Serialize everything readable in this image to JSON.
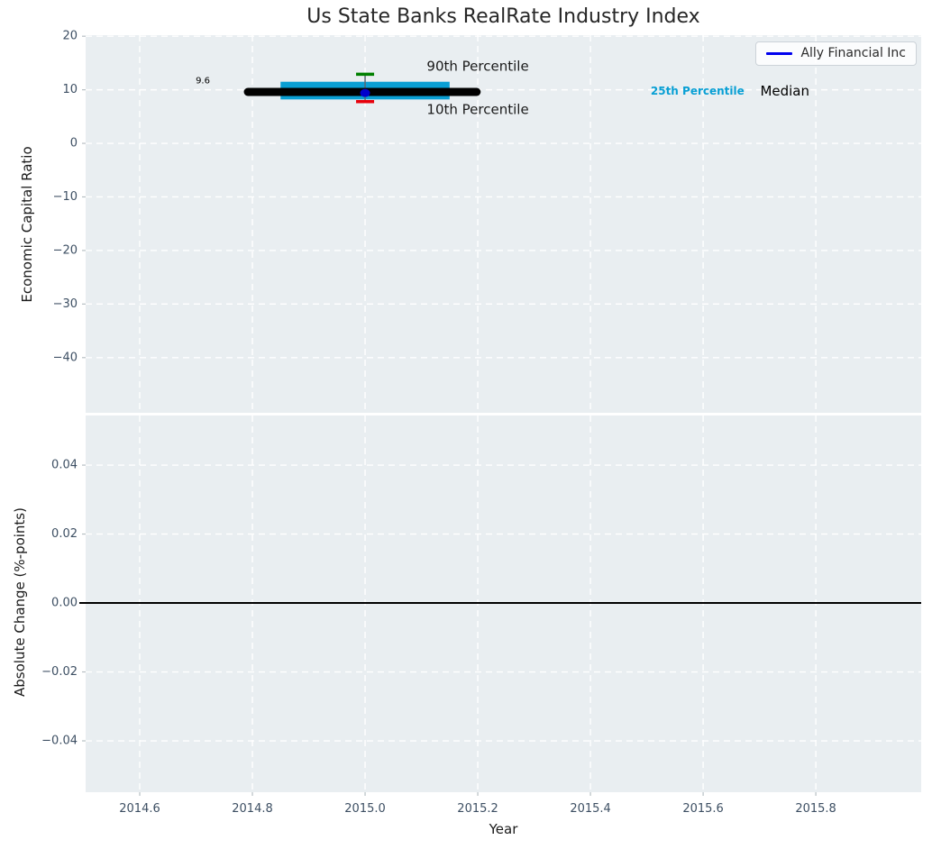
{
  "chart_data": {
    "type": "line",
    "title": "Us State Banks RealRate Industry Index",
    "xlabel": "Year",
    "style": {
      "figure_bg": "#ffffff",
      "plot_bg": "#e9eef1",
      "grid_color": "#ffffff",
      "tick_label_color": "#3d4f63",
      "axis_label_color": "#1a1a1a",
      "title_color": "#262626",
      "tick_mark_color": "#b6bfc3"
    },
    "panels": [
      {
        "id": "economic-capital-ratio",
        "ylabel": "Economic Capital Ratio",
        "xlim": [
          2014.504,
          2015.987
        ],
        "ylim": [
          -50.3,
          20.2
        ],
        "xticks": [
          2014.6,
          2014.8,
          2015.0,
          2015.2,
          2015.4,
          2015.6,
          2015.8
        ],
        "xtick_labels": [
          "2014.6",
          "2014.8",
          "2015.0",
          "2015.2",
          "2015.4",
          "2015.6",
          "2015.8"
        ],
        "show_xtick_labels": false,
        "yticks": [
          20,
          10,
          0,
          -10,
          -20,
          -30,
          -40
        ],
        "ytick_labels": [
          "20",
          "10",
          "0",
          "−10",
          "−20",
          "−30",
          "−40"
        ],
        "grid": true,
        "series": [
          {
            "name": "25th-75th Percentile Band",
            "type": "band",
            "color": "#0a9fd4",
            "x_start": 2014.85,
            "x_end": 2015.15,
            "y_low": 8.2,
            "y_high": 11.5
          },
          {
            "name": "10th-90th Percentile Range",
            "type": "errorbar",
            "x": 2015.0,
            "y_low": 7.8,
            "y_high": 12.9,
            "line_color": "#5a6672",
            "cap_low_color": "#e8000b",
            "cap_high_color": "#008000",
            "cap_half_width": 0.016
          },
          {
            "name": "Median",
            "type": "line",
            "color": "#000000",
            "width": 9,
            "linecap": "round",
            "x": [
              2014.792,
              2015.198
            ],
            "y": [
              9.6,
              9.6
            ]
          },
          {
            "name": "Ally Financial Inc",
            "type": "scatter",
            "color": "#0000cc",
            "x": [
              2015.0
            ],
            "y": [
              9.4
            ]
          }
        ],
        "annotations": [
          {
            "text": "9.6",
            "x": 2014.712,
            "y": 11.6,
            "color": "#000000",
            "size": 10,
            "weight": "normal"
          },
          {
            "text": "90th Percentile",
            "x": 2015.2,
            "y": 14.4,
            "color": "#1a1a1a",
            "size": 15,
            "weight": "normal"
          },
          {
            "text": "10th Percentile",
            "x": 2015.2,
            "y": 6.3,
            "color": "#1a1a1a",
            "size": 15,
            "weight": "normal"
          },
          {
            "text": "25th Percentile",
            "x": 2015.59,
            "y": 9.8,
            "color": "#089fd4",
            "size": 12,
            "weight": "bold"
          },
          {
            "text": "Median",
            "x": 2015.745,
            "y": 9.8,
            "color": "#000000",
            "size": 15,
            "weight": "normal"
          }
        ],
        "legend": {
          "label": "Ally Financial Inc",
          "line_color": "#0000ee",
          "position": "upper right"
        }
      },
      {
        "id": "absolute-change",
        "ylabel": "Absolute Change (%-points)",
        "xlim": [
          2014.504,
          2015.987
        ],
        "ylim": [
          -0.0549,
          0.0544
        ],
        "xticks": [
          2014.6,
          2014.8,
          2015.0,
          2015.2,
          2015.4,
          2015.6,
          2015.8
        ],
        "xtick_labels": [
          "2014.6",
          "2014.8",
          "2015.0",
          "2015.2",
          "2015.4",
          "2015.6",
          "2015.8"
        ],
        "show_xtick_labels": true,
        "yticks": [
          0.04,
          0.02,
          0,
          -0.02,
          -0.04
        ],
        "ytick_labels": [
          "0.04",
          "0.02",
          "0.00",
          "−0.02",
          "−0.04"
        ],
        "grid": true,
        "series": [],
        "zero_line": {
          "y": 0,
          "color": "#000000",
          "width": 2
        },
        "annotations": []
      }
    ]
  }
}
